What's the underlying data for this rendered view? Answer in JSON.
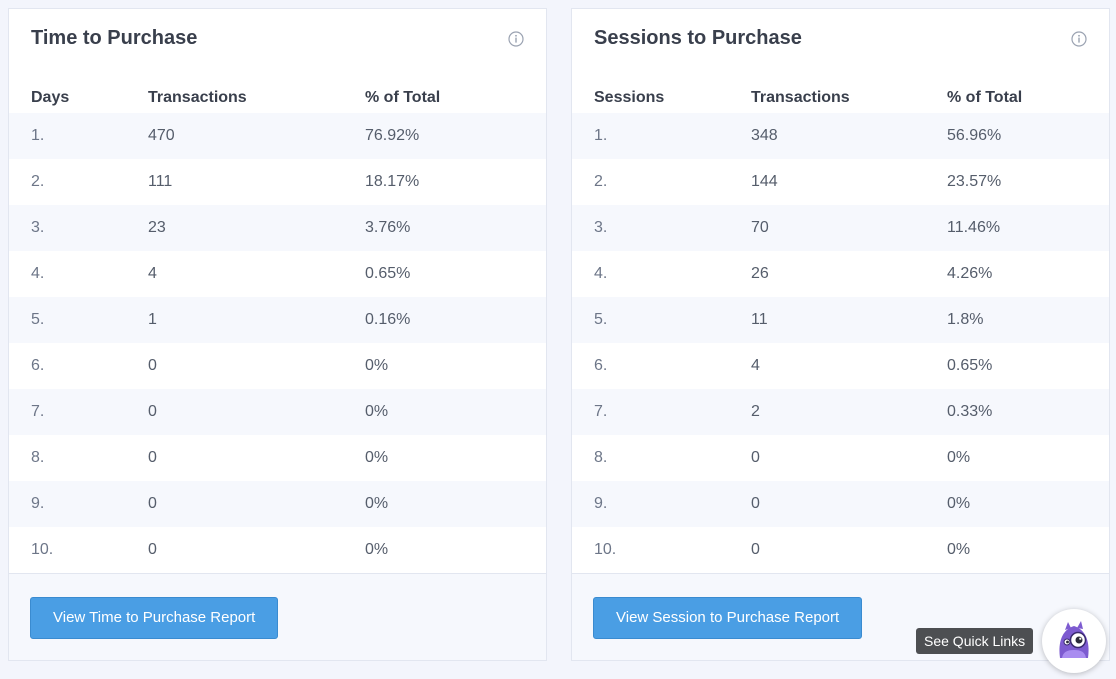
{
  "time_card": {
    "title": "Time to Purchase",
    "headers": [
      "Days",
      "Transactions",
      "% of Total"
    ],
    "rows": [
      {
        "idx": "1.",
        "transactions": "470",
        "pct": "76.92%"
      },
      {
        "idx": "2.",
        "transactions": "111",
        "pct": "18.17%"
      },
      {
        "idx": "3.",
        "transactions": "23",
        "pct": "3.76%"
      },
      {
        "idx": "4.",
        "transactions": "4",
        "pct": "0.65%"
      },
      {
        "idx": "5.",
        "transactions": "1",
        "pct": "0.16%"
      },
      {
        "idx": "6.",
        "transactions": "0",
        "pct": "0%"
      },
      {
        "idx": "7.",
        "transactions": "0",
        "pct": "0%"
      },
      {
        "idx": "8.",
        "transactions": "0",
        "pct": "0%"
      },
      {
        "idx": "9.",
        "transactions": "0",
        "pct": "0%"
      },
      {
        "idx": "10.",
        "transactions": "0",
        "pct": "0%"
      }
    ],
    "button_label": "View Time to Purchase Report"
  },
  "session_card": {
    "title": "Sessions to Purchase",
    "headers": [
      "Sessions",
      "Transactions",
      "% of Total"
    ],
    "rows": [
      {
        "idx": "1.",
        "transactions": "348",
        "pct": "56.96%"
      },
      {
        "idx": "2.",
        "transactions": "144",
        "pct": "23.57%"
      },
      {
        "idx": "3.",
        "transactions": "70",
        "pct": "11.46%"
      },
      {
        "idx": "4.",
        "transactions": "26",
        "pct": "4.26%"
      },
      {
        "idx": "5.",
        "transactions": "11",
        "pct": "1.8%"
      },
      {
        "idx": "6.",
        "transactions": "4",
        "pct": "0.65%"
      },
      {
        "idx": "7.",
        "transactions": "2",
        "pct": "0.33%"
      },
      {
        "idx": "8.",
        "transactions": "0",
        "pct": "0%"
      },
      {
        "idx": "9.",
        "transactions": "0",
        "pct": "0%"
      },
      {
        "idx": "10.",
        "transactions": "0",
        "pct": "0%"
      }
    ],
    "button_label": "View Session to Purchase Report"
  },
  "quick_links": {
    "tooltip": "See Quick Links",
    "icon": "monster-mascot-icon"
  },
  "colors": {
    "accent": "#4a9ee4",
    "row_stripe": "#f6f8fd",
    "page_bg": "#f3f5fc",
    "mascot": "#7d5bd0"
  }
}
